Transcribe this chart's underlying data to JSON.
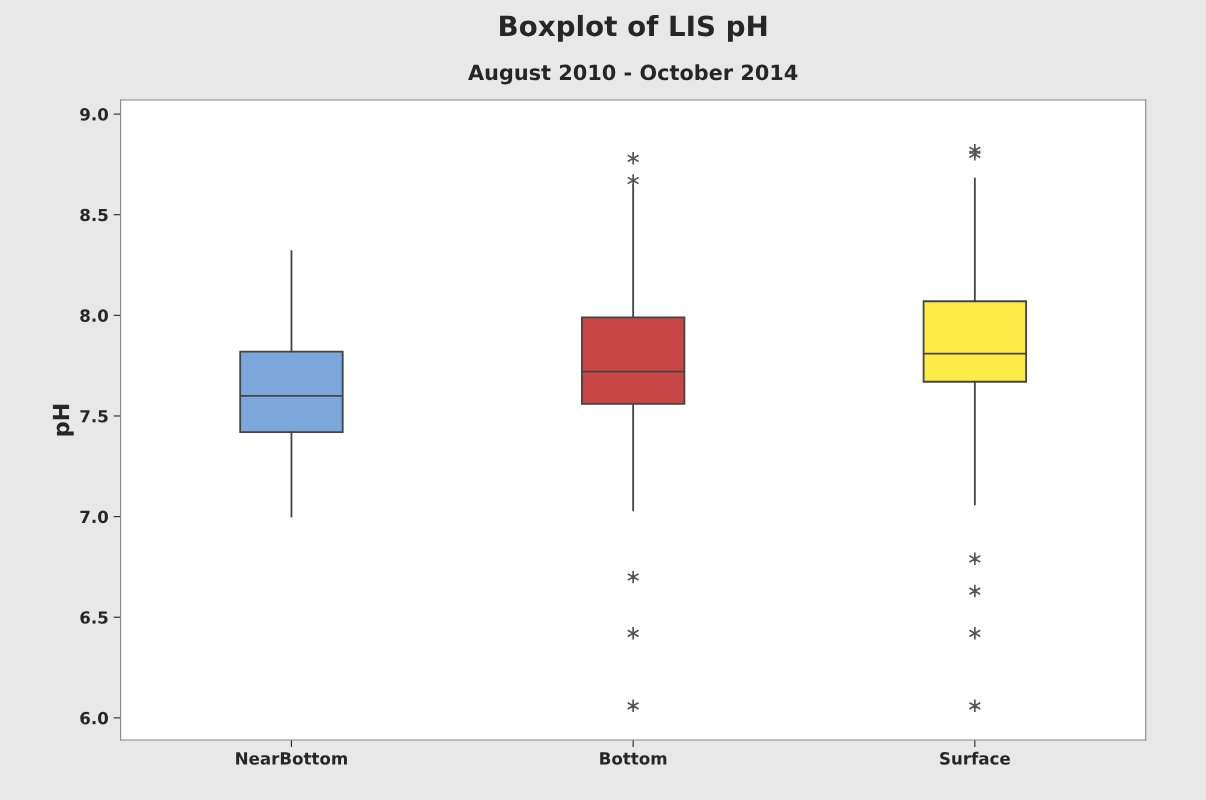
{
  "chart_data": {
    "type": "box",
    "title": "Boxplot of LIS pH",
    "subtitle": "August 2010 - October 2014",
    "ylabel": "pH",
    "categories": [
      "NearBottom",
      "Bottom",
      "Surface"
    ],
    "colors": [
      "#7ba7db",
      "#c94646",
      "#ffec47"
    ],
    "boxes": [
      {
        "low": 7.0,
        "q1": 7.42,
        "median": 7.6,
        "q3": 7.82,
        "high": 8.32
      },
      {
        "low": 7.03,
        "q1": 7.56,
        "median": 7.72,
        "q3": 7.99,
        "high": 8.65,
        "outliers": [
          8.78,
          8.67,
          6.7,
          6.42,
          6.06
        ]
      },
      {
        "low": 7.06,
        "q1": 7.67,
        "median": 7.81,
        "q3": 8.07,
        "high": 8.68,
        "outliers": [
          8.82,
          8.8,
          6.79,
          6.63,
          6.42,
          6.06
        ]
      }
    ],
    "ylim": [
      5.89,
      9.07
    ],
    "yticks": [
      {
        "value": 6.0,
        "label": "6.0"
      },
      {
        "value": 6.5,
        "label": "6.5"
      },
      {
        "value": 7.0,
        "label": "7.0"
      },
      {
        "value": 7.5,
        "label": "7.5"
      },
      {
        "value": 8.0,
        "label": "8.0"
      },
      {
        "value": 8.5,
        "label": "8.5"
      },
      {
        "value": 9.0,
        "label": "9.0"
      }
    ],
    "grid": false,
    "legend": false
  }
}
